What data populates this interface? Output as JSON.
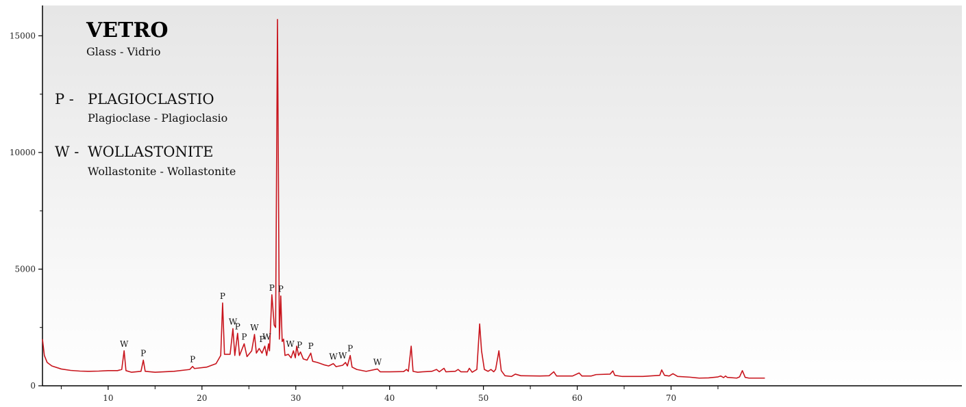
{
  "chart_data": {
    "type": "line",
    "title": "VETRO",
    "subtitle": "Glass - Vidrio",
    "legend": [
      {
        "key": "P -",
        "name": "PLAGIOCLASTIO",
        "translation": "Plagioclase - Plagioclasio"
      },
      {
        "key": "W -",
        "name": "WOLLASTONITE",
        "translation": "Wollastonite - Wollastonite"
      }
    ],
    "xlim": [
      3,
      101
    ],
    "ylim": [
      0,
      16300
    ],
    "x_ticks_major": [
      10,
      20,
      30,
      40,
      50,
      60,
      70
    ],
    "x_ticks_minor": [
      5,
      15,
      25,
      35,
      45,
      55,
      65,
      75
    ],
    "y_ticks": [
      0,
      5000,
      10000,
      15000
    ],
    "y_ticks_minor": [
      2500,
      7500,
      12500
    ],
    "line_color": "#c8141c",
    "background_gradient": [
      "#e6e6e6",
      "#ffffff"
    ],
    "series": [
      {
        "values": [
          [
            3.0,
            2000
          ],
          [
            3.2,
            1300
          ],
          [
            3.5,
            1000
          ],
          [
            4.0,
            850
          ],
          [
            5.0,
            720
          ],
          [
            6.0,
            660
          ],
          [
            7.0,
            630
          ],
          [
            8.0,
            620
          ],
          [
            9.0,
            630
          ],
          [
            10.0,
            650
          ],
          [
            11.0,
            650
          ],
          [
            11.45,
            700
          ],
          [
            11.7,
            1500
          ],
          [
            11.9,
            650
          ],
          [
            12.5,
            580
          ],
          [
            13.5,
            620
          ],
          [
            13.75,
            1100
          ],
          [
            13.95,
            620
          ],
          [
            15.0,
            580
          ],
          [
            17.0,
            620
          ],
          [
            18.7,
            700
          ],
          [
            19.0,
            830
          ],
          [
            19.2,
            740
          ],
          [
            20.5,
            800
          ],
          [
            21.5,
            950
          ],
          [
            22.0,
            1300
          ],
          [
            22.2,
            3550
          ],
          [
            22.4,
            1350
          ],
          [
            23.0,
            1350
          ],
          [
            23.3,
            2450
          ],
          [
            23.5,
            1300
          ],
          [
            23.8,
            2250
          ],
          [
            24.0,
            1300
          ],
          [
            24.5,
            1800
          ],
          [
            24.8,
            1250
          ],
          [
            25.3,
            1500
          ],
          [
            25.6,
            2200
          ],
          [
            25.8,
            1400
          ],
          [
            26.1,
            1600
          ],
          [
            26.4,
            1400
          ],
          [
            26.7,
            1700
          ],
          [
            26.9,
            1300
          ],
          [
            27.1,
            1800
          ],
          [
            27.2,
            1500
          ],
          [
            27.45,
            3900
          ],
          [
            27.7,
            2600
          ],
          [
            27.85,
            2500
          ],
          [
            28.05,
            15700
          ],
          [
            28.25,
            2000
          ],
          [
            28.4,
            3850
          ],
          [
            28.55,
            1900
          ],
          [
            28.7,
            2000
          ],
          [
            28.85,
            1300
          ],
          [
            29.2,
            1350
          ],
          [
            29.5,
            1200
          ],
          [
            29.75,
            1500
          ],
          [
            29.95,
            1200
          ],
          [
            30.1,
            1700
          ],
          [
            30.3,
            1300
          ],
          [
            30.5,
            1450
          ],
          [
            30.8,
            1150
          ],
          [
            31.2,
            1100
          ],
          [
            31.6,
            1400
          ],
          [
            31.8,
            1050
          ],
          [
            32.3,
            1000
          ],
          [
            33.0,
            900
          ],
          [
            33.5,
            850
          ],
          [
            34.0,
            950
          ],
          [
            34.3,
            820
          ],
          [
            35.0,
            880
          ],
          [
            35.3,
            1000
          ],
          [
            35.5,
            850
          ],
          [
            35.8,
            1300
          ],
          [
            36.0,
            800
          ],
          [
            36.5,
            700
          ],
          [
            37.5,
            620
          ],
          [
            38.7,
            720
          ],
          [
            39.0,
            600
          ],
          [
            40.0,
            600
          ],
          [
            41.5,
            610
          ],
          [
            41.8,
            700
          ],
          [
            42.0,
            620
          ],
          [
            42.3,
            1700
          ],
          [
            42.5,
            620
          ],
          [
            43.0,
            580
          ],
          [
            43.5,
            600
          ],
          [
            44.5,
            620
          ],
          [
            45.0,
            700
          ],
          [
            45.3,
            600
          ],
          [
            45.8,
            750
          ],
          [
            46.0,
            600
          ],
          [
            47.0,
            620
          ],
          [
            47.3,
            700
          ],
          [
            47.6,
            600
          ],
          [
            48.3,
            600
          ],
          [
            48.5,
            750
          ],
          [
            48.8,
            580
          ],
          [
            49.3,
            700
          ],
          [
            49.6,
            2650
          ],
          [
            49.8,
            1500
          ],
          [
            50.1,
            700
          ],
          [
            50.5,
            620
          ],
          [
            50.8,
            700
          ],
          [
            51.1,
            600
          ],
          [
            51.3,
            700
          ],
          [
            51.65,
            1500
          ],
          [
            51.9,
            650
          ],
          [
            52.3,
            430
          ],
          [
            53.0,
            400
          ],
          [
            53.4,
            500
          ],
          [
            54.0,
            430
          ],
          [
            56.0,
            420
          ],
          [
            57.0,
            430
          ],
          [
            57.5,
            600
          ],
          [
            57.8,
            420
          ],
          [
            59.5,
            420
          ],
          [
            60.2,
            550
          ],
          [
            60.5,
            420
          ],
          [
            61.5,
            420
          ],
          [
            62.0,
            480
          ],
          [
            63.5,
            500
          ],
          [
            63.8,
            640
          ],
          [
            64.0,
            450
          ],
          [
            64.8,
            400
          ],
          [
            67.0,
            400
          ],
          [
            68.8,
            450
          ],
          [
            69.0,
            680
          ],
          [
            69.3,
            450
          ],
          [
            69.8,
            420
          ],
          [
            70.2,
            520
          ],
          [
            70.7,
            400
          ],
          [
            72.0,
            370
          ],
          [
            73.0,
            330
          ],
          [
            74.0,
            340
          ],
          [
            75.0,
            380
          ],
          [
            75.3,
            420
          ],
          [
            75.6,
            350
          ],
          [
            75.8,
            420
          ],
          [
            76.0,
            360
          ],
          [
            77.0,
            330
          ],
          [
            77.3,
            380
          ],
          [
            77.6,
            650
          ],
          [
            77.9,
            360
          ],
          [
            78.3,
            330
          ],
          [
            80.0,
            330
          ]
        ]
      }
    ],
    "peak_labels": [
      {
        "text": "W",
        "x": 11.7,
        "y": 1500
      },
      {
        "text": "P",
        "x": 13.75,
        "y": 1100
      },
      {
        "text": "P",
        "x": 19.0,
        "y": 830
      },
      {
        "text": "P",
        "x": 22.2,
        "y": 3550
      },
      {
        "text": "W",
        "x": 23.3,
        "y": 2450
      },
      {
        "text": "P",
        "x": 23.8,
        "y": 2250
      },
      {
        "text": "P",
        "x": 24.5,
        "y": 1800
      },
      {
        "text": "W",
        "x": 25.6,
        "y": 2200
      },
      {
        "text": "P",
        "x": 26.4,
        "y": 1700
      },
      {
        "text": "W",
        "x": 26.9,
        "y": 1800
      },
      {
        "text": "P",
        "x": 27.45,
        "y": 3900
      },
      {
        "text": "P",
        "x": 28.4,
        "y": 3850
      },
      {
        "text": "W",
        "x": 29.4,
        "y": 1500
      },
      {
        "text": "P",
        "x": 30.4,
        "y": 1450
      },
      {
        "text": "P",
        "x": 31.6,
        "y": 1400
      },
      {
        "text": "W",
        "x": 34.0,
        "y": 950
      },
      {
        "text": "W",
        "x": 35.0,
        "y": 1000
      },
      {
        "text": "P",
        "x": 35.8,
        "y": 1300
      },
      {
        "text": "W",
        "x": 38.7,
        "y": 720
      }
    ]
  }
}
